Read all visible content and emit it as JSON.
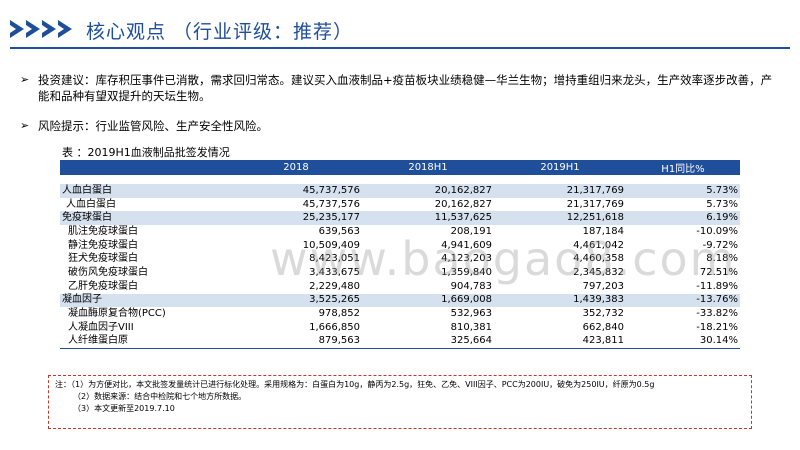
{
  "header": {
    "title": "核心观点 （行业评级：推荐）",
    "accent_color": "#1f4e9b"
  },
  "bullets": [
    {
      "text": "投资建议：库存积压事件已消散，需求回归常态。建议买入血液制品+疫苗板块业绩稳健—华兰生物；增持重组归来龙头，生产效率逐步改善，产能和品种有望双提升的天坛生物。"
    },
    {
      "text": "风险提示：行业监管风险、生产安全性风险。"
    }
  ],
  "table": {
    "title": "表 ：2019H1血液制品批签发情况",
    "headers": [
      "",
      "2018",
      "2018H1",
      "2019H1",
      "H1同比%"
    ],
    "rows": [
      {
        "name": "人血白蛋白",
        "v2018": "45,737,576",
        "v2018h1": "20,162,827",
        "v2019h1": "21,317,769",
        "yoy": "5.73%",
        "level": "main"
      },
      {
        "name": "人血白蛋白",
        "v2018": "45,737,576",
        "v2018h1": "20,162,827",
        "v2019h1": "21,317,769",
        "yoy": "5.73%",
        "level": "sub"
      },
      {
        "name": "免疫球蛋白",
        "v2018": "25,235,177",
        "v2018h1": "11,537,625",
        "v2019h1": "12,251,618",
        "yoy": "6.19%",
        "level": "main"
      },
      {
        "name": "肌注免疫球蛋白",
        "v2018": "639,563",
        "v2018h1": "208,191",
        "v2019h1": "187,184",
        "yoy": "-10.09%",
        "level": "sub2"
      },
      {
        "name": "静注免疫球蛋白",
        "v2018": "10,509,409",
        "v2018h1": "4,941,609",
        "v2019h1": "4,461,042",
        "yoy": "-9.72%",
        "level": "sub2"
      },
      {
        "name": "狂犬免疫球蛋白",
        "v2018": "8,423,051",
        "v2018h1": "4,123,203",
        "v2019h1": "4,460,358",
        "yoy": "8.18%",
        "level": "sub2"
      },
      {
        "name": "破伤风免疫球蛋白",
        "v2018": "3,433,675",
        "v2018h1": "1,359,840",
        "v2019h1": "2,345,832",
        "yoy": "72.51%",
        "level": "sub2"
      },
      {
        "name": "乙肝免疫球蛋白",
        "v2018": "2,229,480",
        "v2018h1": "904,783",
        "v2019h1": "797,203",
        "yoy": "-11.89%",
        "level": "sub2"
      },
      {
        "name": "凝血因子",
        "v2018": "3,525,265",
        "v2018h1": "1,669,008",
        "v2019h1": "1,439,383",
        "yoy": "-13.76%",
        "level": "main"
      },
      {
        "name": "凝血酶原复合物(PCC)",
        "v2018": "978,852",
        "v2018h1": "532,963",
        "v2019h1": "352,732",
        "yoy": "-33.82%",
        "level": "sub2"
      },
      {
        "name": "人凝血因子VIII",
        "v2018": "1,666,850",
        "v2018h1": "810,381",
        "v2019h1": "662,840",
        "yoy": "-18.21%",
        "level": "sub2"
      },
      {
        "name": "人纤维蛋白原",
        "v2018": "879,563",
        "v2018h1": "325,664",
        "v2019h1": "423,811",
        "yoy": "30.14%",
        "level": "sub2"
      }
    ]
  },
  "watermark": "www.baogao8.com",
  "notes": {
    "line1": "注：（1）为方便对比，本文批签发量统计已进行标化处理。采用规格为：白蛋白为10g，静丙为2.5g，狂免、乙免、VIII因子、PCC为200IU，破免为250IU，纤原为0.5g",
    "line2": "（2）数据来源：结合中检院和七个地方所数据。",
    "line3": "（3）本文更新至2019.7.10"
  }
}
